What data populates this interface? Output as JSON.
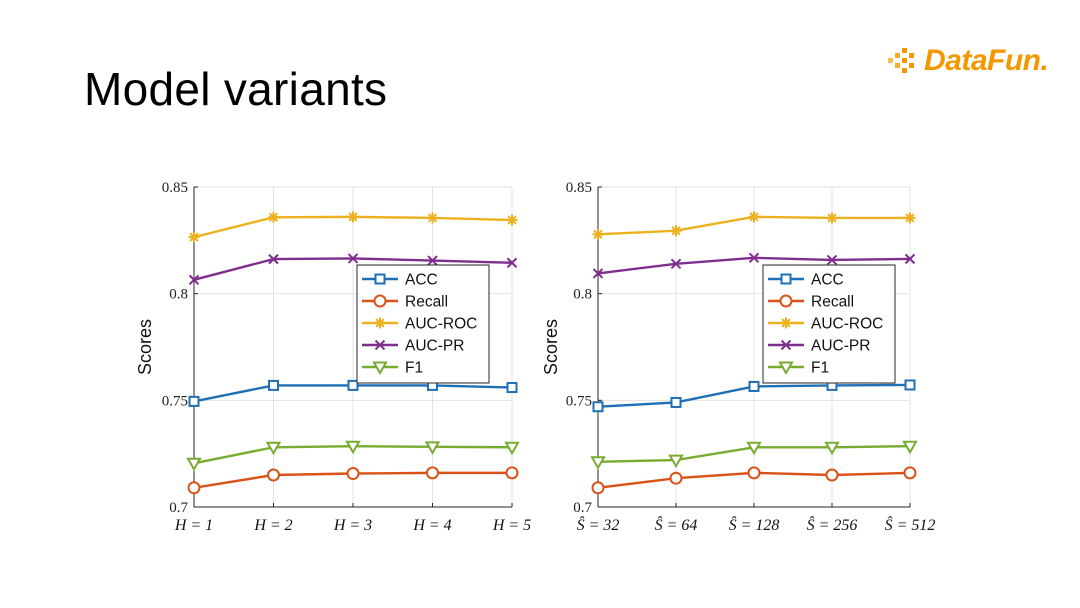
{
  "slide": {
    "title": "Model variants"
  },
  "logo": {
    "text": "DataFun."
  },
  "colors": {
    "ACC": "#1f6fb5",
    "Recall": "#d95319",
    "AUC-ROC": "#edb120",
    "AUC-PR": "#7e2f8e",
    "F1": "#77ac30",
    "logo": "#f39800"
  },
  "chart_data": [
    {
      "type": "line",
      "title": "",
      "xlabel": "",
      "ylabel": "Scores",
      "categories": [
        "H = 1",
        "H = 2",
        "H = 3",
        "H = 4",
        "H = 5"
      ],
      "ylim": [
        0.7,
        0.85
      ],
      "yticks": [
        "0.7",
        "0.75",
        "0.8",
        "0.85"
      ],
      "grid": true,
      "legend_position": "center-right",
      "series": [
        {
          "name": "ACC",
          "marker": "square",
          "values": [
            0.7495,
            0.757,
            0.757,
            0.757,
            0.756
          ]
        },
        {
          "name": "Recall",
          "marker": "circle",
          "values": [
            0.709,
            0.715,
            0.7157,
            0.716,
            0.716
          ]
        },
        {
          "name": "AUC-ROC",
          "marker": "asterisk",
          "values": [
            0.8265,
            0.8358,
            0.836,
            0.8355,
            0.8345
          ]
        },
        {
          "name": "AUC-PR",
          "marker": "x",
          "values": [
            0.8065,
            0.8162,
            0.8165,
            0.8155,
            0.8145
          ]
        },
        {
          "name": "F1",
          "marker": "triangle-down",
          "values": [
            0.7205,
            0.728,
            0.7285,
            0.7282,
            0.728
          ]
        }
      ]
    },
    {
      "type": "line",
      "title": "",
      "xlabel": "",
      "ylabel": "Scores",
      "categories": [
        "Ŝ = 32",
        "Ŝ = 64",
        "Ŝ = 128",
        "Ŝ = 256",
        "Ŝ = 512"
      ],
      "ylim": [
        0.7,
        0.85
      ],
      "yticks": [
        "0.7",
        "0.75",
        "0.8",
        "0.85"
      ],
      "grid": true,
      "legend_position": "center-right",
      "series": [
        {
          "name": "ACC",
          "marker": "square",
          "values": [
            0.747,
            0.749,
            0.7565,
            0.757,
            0.7572
          ]
        },
        {
          "name": "Recall",
          "marker": "circle",
          "values": [
            0.709,
            0.7135,
            0.716,
            0.715,
            0.716
          ]
        },
        {
          "name": "AUC-ROC",
          "marker": "asterisk",
          "values": [
            0.8278,
            0.8295,
            0.836,
            0.8355,
            0.8355
          ]
        },
        {
          "name": "AUC-PR",
          "marker": "x",
          "values": [
            0.8095,
            0.814,
            0.8168,
            0.8158,
            0.8163
          ]
        },
        {
          "name": "F1",
          "marker": "triangle-down",
          "values": [
            0.7212,
            0.722,
            0.728,
            0.728,
            0.7285
          ]
        }
      ]
    }
  ]
}
